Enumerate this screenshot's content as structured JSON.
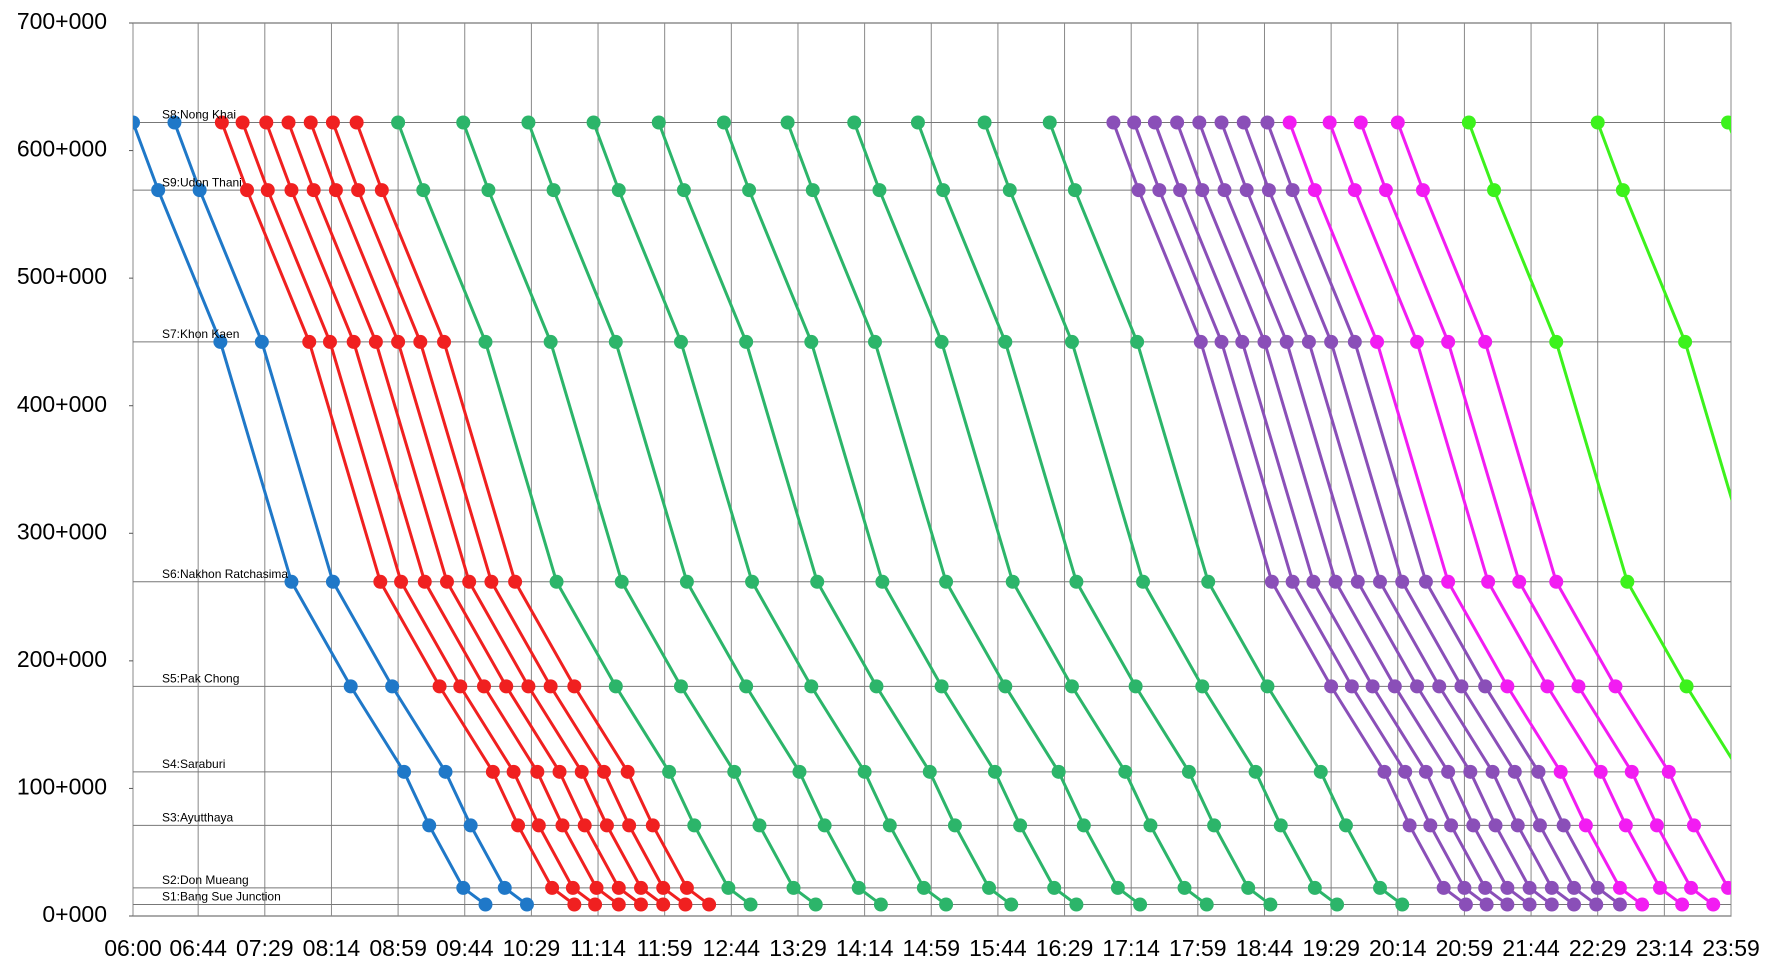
{
  "chart_data": {
    "type": "timetable",
    "xlim": [
      360,
      1439
    ],
    "xticks": [
      {
        "value": 360,
        "label": "06:00"
      },
      {
        "value": 404,
        "label": "06:44"
      },
      {
        "value": 449,
        "label": "07:29"
      },
      {
        "value": 494,
        "label": "08:14"
      },
      {
        "value": 539,
        "label": "08:59"
      },
      {
        "value": 584,
        "label": "09:44"
      },
      {
        "value": 629,
        "label": "10:29"
      },
      {
        "value": 674,
        "label": "11:14"
      },
      {
        "value": 719,
        "label": "11:59"
      },
      {
        "value": 764,
        "label": "12:44"
      },
      {
        "value": 809,
        "label": "13:29"
      },
      {
        "value": 854,
        "label": "14:14"
      },
      {
        "value": 899,
        "label": "14:59"
      },
      {
        "value": 944,
        "label": "15:44"
      },
      {
        "value": 989,
        "label": "16:29"
      },
      {
        "value": 1034,
        "label": "17:14"
      },
      {
        "value": 1079,
        "label": "17:59"
      },
      {
        "value": 1124,
        "label": "18:44"
      },
      {
        "value": 1169,
        "label": "19:29"
      },
      {
        "value": 1214,
        "label": "20:14"
      },
      {
        "value": 1259,
        "label": "20:59"
      },
      {
        "value": 1304,
        "label": "21:44"
      },
      {
        "value": 1349,
        "label": "22:29"
      },
      {
        "value": 1394,
        "label": "23:14"
      },
      {
        "value": 1439,
        "label": "23:59"
      }
    ],
    "ylim": [
      0,
      700
    ],
    "yticks": [
      {
        "value": 0,
        "label": "0+000"
      },
      {
        "value": 100,
        "label": "100+000"
      },
      {
        "value": 200,
        "label": "200+000"
      },
      {
        "value": 300,
        "label": "300+000"
      },
      {
        "value": 400,
        "label": "400+000"
      },
      {
        "value": 500,
        "label": "500+000"
      },
      {
        "value": 600,
        "label": "600+000"
      },
      {
        "value": 700,
        "label": "700+000"
      }
    ],
    "stations": [
      {
        "label": "S8:Nong Khai",
        "value": 622
      },
      {
        "label": "S9:Udon Thani",
        "value": 569
      },
      {
        "label": "S7:Khon Kaen",
        "value": 450
      },
      {
        "label": "S6:Nakhon Ratchasima",
        "value": 262
      },
      {
        "label": "S5:Pak Chong",
        "value": 180
      },
      {
        "label": "S4:Saraburi",
        "value": 113
      },
      {
        "label": "S3:Ayutthaya",
        "value": 71
      },
      {
        "label": "S2:Don Mueang",
        "value": 22
      },
      {
        "label": "S1:Bang Sue Junction",
        "value": 9
      }
    ],
    "series": [
      {
        "color": "#1f78c8",
        "trains": [
          [
            360,
            377,
            419,
            467,
            507,
            543,
            560,
            583,
            598
          ],
          [
            388,
            405,
            447,
            495,
            535,
            571,
            588,
            611,
            626
          ]
        ]
      },
      {
        "color": "#f02020",
        "trains": [
          [
            420,
            437,
            479,
            527,
            567,
            603,
            620,
            643,
            658
          ],
          [
            434,
            451,
            493,
            541,
            581,
            617,
            634,
            657,
            672
          ],
          [
            450,
            467,
            509,
            557,
            597,
            633,
            650,
            673,
            688
          ],
          [
            465,
            482,
            524,
            572,
            612,
            648,
            665,
            688,
            703
          ],
          [
            480,
            497,
            539,
            587,
            627,
            663,
            680,
            703,
            718
          ],
          [
            495,
            512,
            554,
            602,
            642,
            678,
            695,
            718,
            733
          ],
          [
            511,
            528,
            570,
            618,
            658,
            694,
            711,
            734,
            749
          ]
        ]
      },
      {
        "color": "#2cb56a",
        "trains": [
          [
            539,
            556,
            598,
            646,
            686,
            722,
            739,
            762,
            777
          ],
          [
            583,
            600,
            642,
            690,
            730,
            766,
            783,
            806,
            821
          ],
          [
            627,
            644,
            686,
            734,
            774,
            810,
            827,
            850,
            865
          ],
          [
            671,
            688,
            730,
            778,
            818,
            854,
            871,
            894,
            909
          ],
          [
            715,
            732,
            774,
            822,
            862,
            898,
            915,
            938,
            953
          ],
          [
            759,
            776,
            818,
            866,
            906,
            942,
            959,
            982,
            997
          ],
          [
            802,
            819,
            861,
            909,
            949,
            985,
            1002,
            1025,
            1040
          ],
          [
            847,
            864,
            906,
            954,
            994,
            1030,
            1047,
            1070,
            1085
          ],
          [
            890,
            907,
            949,
            997,
            1037,
            1073,
            1090,
            1113,
            1128
          ],
          [
            935,
            952,
            994,
            1042,
            1082,
            1118,
            1135,
            1158,
            1173
          ],
          [
            979,
            996,
            1038,
            1086,
            1126,
            1162,
            1179,
            1202,
            1217
          ]
        ]
      },
      {
        "color": "#8a4fb8",
        "trains": [
          [
            1022,
            1039,
            1081,
            1129,
            1169,
            1205,
            1222,
            1245,
            1260
          ],
          [
            1036,
            1053,
            1095,
            1143,
            1183,
            1219,
            1236,
            1259,
            1274
          ],
          [
            1050,
            1067,
            1109,
            1157,
            1197,
            1233,
            1250,
            1273,
            1288
          ],
          [
            1065,
            1082,
            1124,
            1172,
            1212,
            1248,
            1265,
            1288,
            1303
          ],
          [
            1080,
            1097,
            1139,
            1187,
            1227,
            1263,
            1280,
            1303,
            1318
          ],
          [
            1095,
            1112,
            1154,
            1202,
            1242,
            1278,
            1295,
            1318,
            1333
          ],
          [
            1110,
            1127,
            1169,
            1217,
            1257,
            1293,
            1310,
            1333,
            1348
          ],
          [
            1126,
            1143,
            1185,
            1233,
            1273,
            1309,
            1326,
            1349,
            1364
          ]
        ]
      },
      {
        "color": "#f21cf2",
        "trains": [
          [
            1141,
            1158,
            1200,
            1248,
            1288,
            1324,
            1341,
            1364,
            1379
          ],
          [
            1168,
            1185,
            1227,
            1275,
            1315,
            1351,
            1368,
            1391,
            1406
          ],
          [
            1189,
            1206,
            1248,
            1296,
            1336,
            1372,
            1389,
            1412,
            1427
          ],
          [
            1214,
            1231,
            1273,
            1321,
            1361,
            1397,
            1414,
            1437,
            1452
          ]
        ]
      },
      {
        "color": "#3cf21c",
        "trains": [
          [
            1262,
            1279,
            1321,
            1369,
            1409,
            1445,
            1462,
            1485,
            1500
          ],
          [
            1349,
            1366,
            1408,
            1456,
            1496,
            1532,
            1549,
            1572,
            1587
          ],
          [
            1437,
            1454,
            1496,
            1544,
            1584,
            1620,
            1637,
            1660,
            1675
          ]
        ]
      }
    ]
  }
}
